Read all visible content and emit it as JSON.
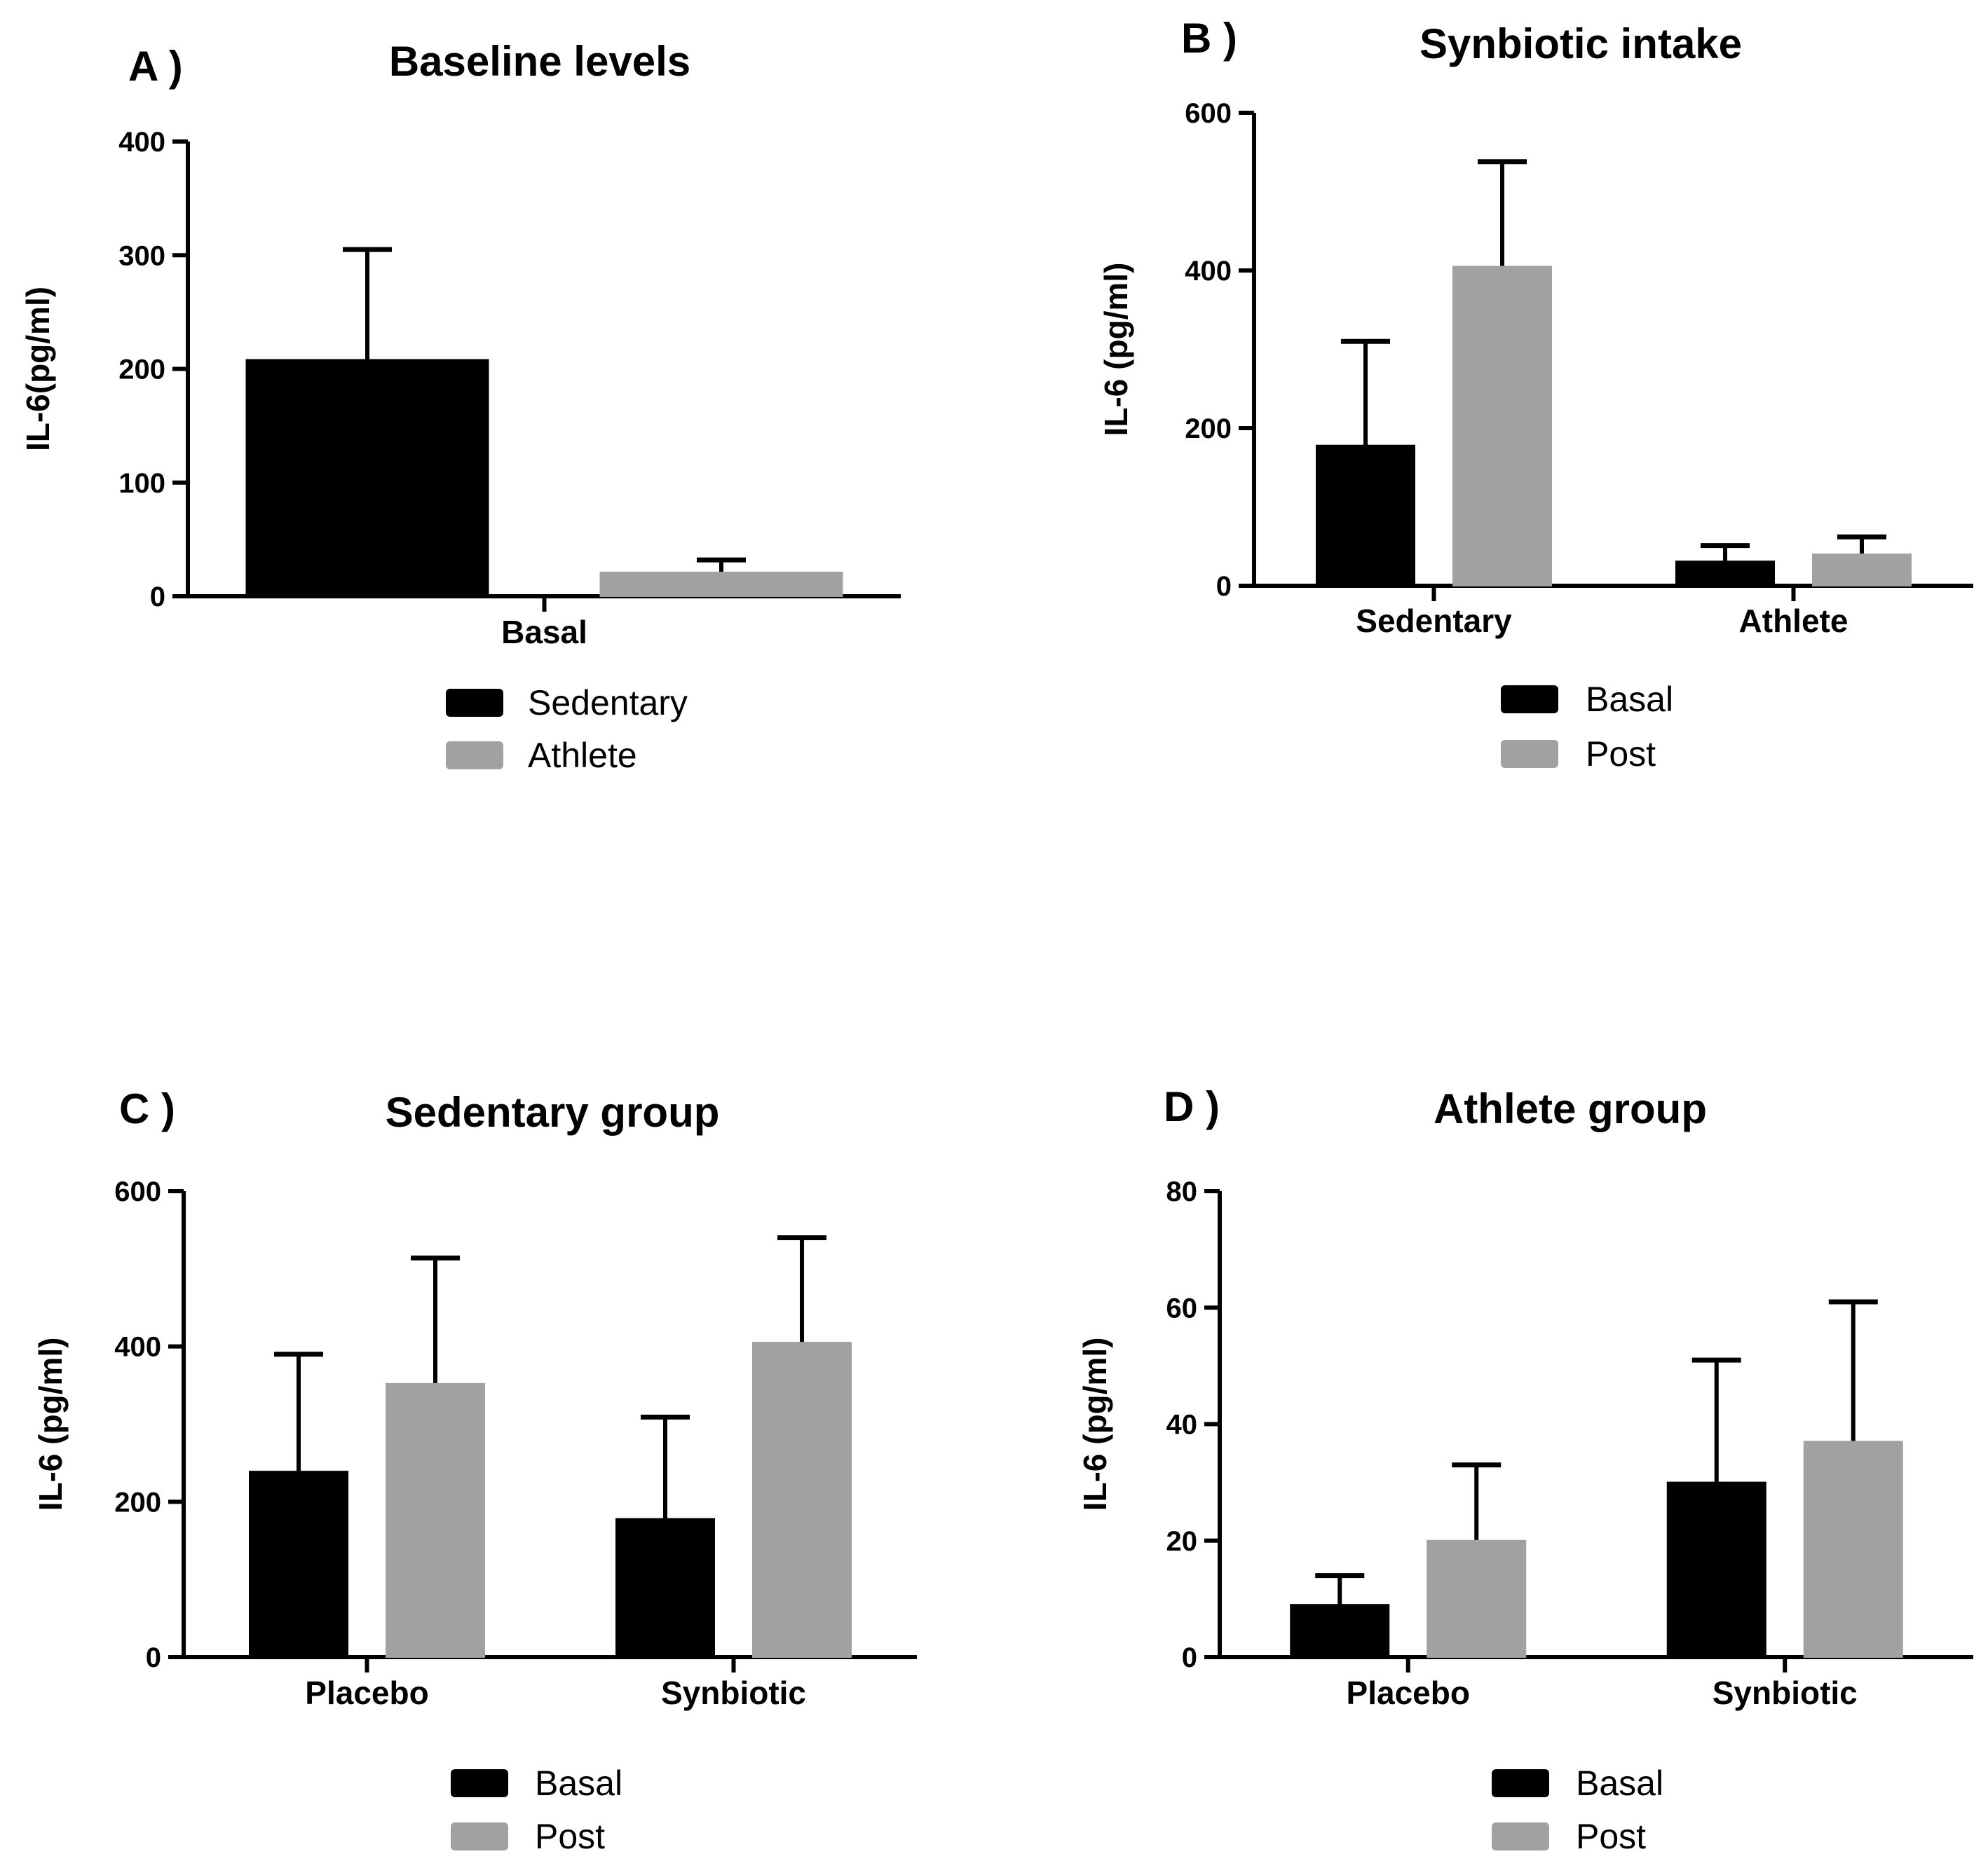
{
  "colors": {
    "basal": "#000000",
    "post": "#a1a1a4",
    "axis": "#000000",
    "background": "#ffffff"
  },
  "chart_data": [
    {
      "panel_label": "A )",
      "type": "bar",
      "title": "Baseline levels",
      "ylabel": "IL-6(pg/ml)",
      "xlabel": "",
      "ylim": [
        0,
        400
      ],
      "yticks": [
        0,
        100,
        200,
        300,
        400
      ],
      "categories": [
        "Basal"
      ],
      "series": [
        {
          "name": "Sedentary",
          "color": "#000000",
          "values": [
            208
          ],
          "errors": [
            97
          ]
        },
        {
          "name": "Athlete",
          "color": "#a1a1a4",
          "values": [
            21
          ],
          "errors": [
            11
          ]
        }
      ],
      "legend_position": "bottom"
    },
    {
      "panel_label": "B )",
      "type": "bar",
      "title": "Synbiotic intake",
      "ylabel": "IL-6 (pg/ml)",
      "xlabel": "",
      "ylim": [
        0,
        600
      ],
      "yticks": [
        0,
        200,
        400,
        600
      ],
      "categories": [
        "Sedentary",
        "Athlete"
      ],
      "series": [
        {
          "name": "Basal",
          "color": "#000000",
          "values": [
            178,
            31
          ],
          "errors": [
            132,
            20
          ]
        },
        {
          "name": "Post",
          "color": "#a1a1a4",
          "values": [
            405,
            40
          ],
          "errors": [
            133,
            22
          ]
        }
      ],
      "legend_position": "bottom"
    },
    {
      "panel_label": "C )",
      "type": "bar",
      "title": "Sedentary group",
      "ylabel": "IL-6 (pg/ml)",
      "xlabel": "",
      "ylim": [
        0,
        600
      ],
      "yticks": [
        0,
        200,
        400,
        600
      ],
      "categories": [
        "Placebo",
        "Synbiotic"
      ],
      "series": [
        {
          "name": "Basal",
          "color": "#000000",
          "values": [
            239,
            178
          ],
          "errors": [
            151,
            131
          ]
        },
        {
          "name": "Post",
          "color": "#a1a1a4",
          "values": [
            352,
            405
          ],
          "errors": [
            162,
            135
          ]
        }
      ],
      "legend_position": "bottom"
    },
    {
      "panel_label": "D )",
      "type": "bar",
      "title": "Athlete group",
      "ylabel": "IL-6 (pg/ml)",
      "xlabel": "",
      "ylim": [
        0,
        80
      ],
      "yticks": [
        0,
        20,
        40,
        60,
        80
      ],
      "categories": [
        "Placebo",
        "Synbiotic"
      ],
      "series": [
        {
          "name": "Basal",
          "color": "#000000",
          "values": [
            9,
            30
          ],
          "errors": [
            5,
            21
          ]
        },
        {
          "name": "Post",
          "color": "#a1a1a4",
          "values": [
            20,
            37
          ],
          "errors": [
            13,
            24
          ]
        }
      ],
      "legend_position": "bottom"
    }
  ]
}
